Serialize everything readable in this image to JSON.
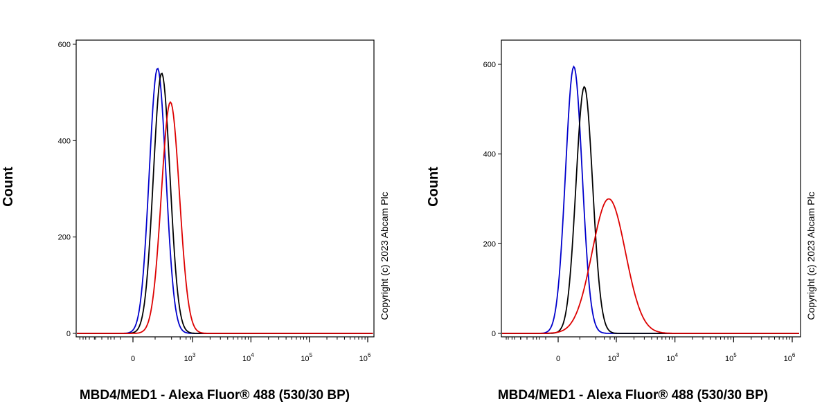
{
  "chart_data": [
    {
      "type": "line",
      "chart": "histogram",
      "xlabel": "MBD4/MED1 - Alexa Fluor® 488 (530/30 BP)",
      "ylabel": "Count",
      "copyright": "Copyright (c) 2023 Abcam Plc",
      "ylim": [
        0,
        600
      ],
      "yticks": [
        "0",
        "200",
        "400",
        "600"
      ],
      "xscale": "biexponential",
      "xticks": [
        {
          "label": "0"
        },
        {
          "label": "10",
          "sup": "3"
        },
        {
          "label": "10",
          "sup": "4"
        },
        {
          "label": "10",
          "sup": "5"
        },
        {
          "label": "10",
          "sup": "6"
        }
      ],
      "series": [
        {
          "color": "#0000cc",
          "peak_x": 120,
          "peak_count": 550
        },
        {
          "color": "#000000",
          "peak_x": 160,
          "peak_count": 540
        },
        {
          "color": "#dd0000",
          "peak_x": 280,
          "peak_count": 480
        }
      ]
    },
    {
      "type": "line",
      "chart": "histogram",
      "xlabel": "MBD4/MED1 - Alexa Fluor® 488 (530/30 BP)",
      "ylabel": "Count",
      "copyright": "Copyright (c) 2023 Abcam Plc",
      "ylim": [
        0,
        600
      ],
      "yticks": [
        "0",
        "200",
        "400",
        "600"
      ],
      "xscale": "biexponential",
      "xticks": [
        {
          "label": "0"
        },
        {
          "label": "10",
          "sup": "3"
        },
        {
          "label": "10",
          "sup": "4"
        },
        {
          "label": "10",
          "sup": "5"
        },
        {
          "label": "10",
          "sup": "6"
        }
      ],
      "series": [
        {
          "color": "#0000cc",
          "peak_x": 60,
          "peak_count": 595
        },
        {
          "color": "#000000",
          "peak_x": 140,
          "peak_count": 550
        },
        {
          "color": "#dd0000",
          "peak_x": 650,
          "peak_count": 300
        }
      ]
    }
  ]
}
